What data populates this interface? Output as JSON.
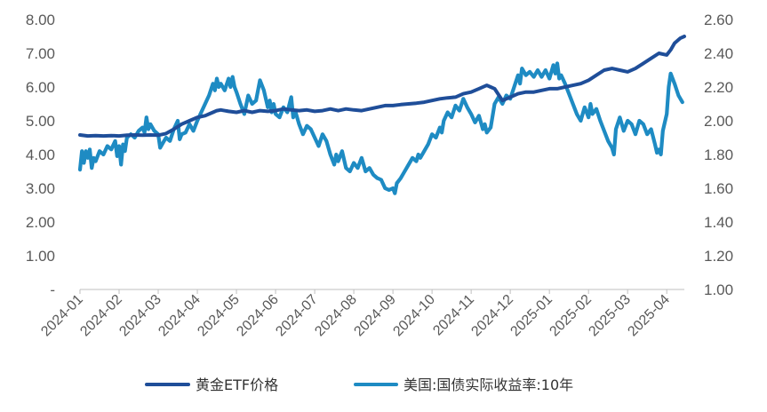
{
  "chart_data": {
    "type": "line",
    "title": "",
    "xlabel": "",
    "ylabel": "",
    "y2label": "",
    "x_categories": [
      "2024-01",
      "2024-02",
      "2024-03",
      "2024-04",
      "2024-05",
      "2024-06",
      "2024-07",
      "2024-08",
      "2024-09",
      "2024-10",
      "2024-11",
      "2024-12",
      "2025-01",
      "2025-02",
      "2025-03",
      "2025-04"
    ],
    "ylim": [
      0,
      8
    ],
    "y_tick_labels": [
      "-",
      "1.00",
      "2.00",
      "3.00",
      "4.00",
      "5.00",
      "6.00",
      "7.00",
      "8.00"
    ],
    "y2lim": [
      1.0,
      2.6
    ],
    "y2_tick_labels": [
      "1.00",
      "1.20",
      "1.40",
      "1.60",
      "1.80",
      "2.00",
      "2.20",
      "2.40",
      "2.60"
    ],
    "grid": false,
    "legend_position": "bottom",
    "series": [
      {
        "name": "黄金ETF价格",
        "axis": "left",
        "color": "#1F4E99",
        "points": [
          [
            0.0,
            4.58
          ],
          [
            0.2,
            4.55
          ],
          [
            0.4,
            4.56
          ],
          [
            0.6,
            4.55
          ],
          [
            0.8,
            4.56
          ],
          [
            1.0,
            4.55
          ],
          [
            1.2,
            4.57
          ],
          [
            1.4,
            4.58
          ],
          [
            1.6,
            4.57
          ],
          [
            1.8,
            4.58
          ],
          [
            2.0,
            4.57
          ],
          [
            2.2,
            4.62
          ],
          [
            2.4,
            4.75
          ],
          [
            2.6,
            4.9
          ],
          [
            2.8,
            5.0
          ],
          [
            3.0,
            5.1
          ],
          [
            3.2,
            5.15
          ],
          [
            3.4,
            5.25
          ],
          [
            3.5,
            5.3
          ],
          [
            3.6,
            5.32
          ],
          [
            3.8,
            5.28
          ],
          [
            4.0,
            5.25
          ],
          [
            4.2,
            5.3
          ],
          [
            4.4,
            5.25
          ],
          [
            4.6,
            5.3
          ],
          [
            4.8,
            5.28
          ],
          [
            5.0,
            5.3
          ],
          [
            5.2,
            5.35
          ],
          [
            5.4,
            5.32
          ],
          [
            5.6,
            5.3
          ],
          [
            5.8,
            5.32
          ],
          [
            6.0,
            5.28
          ],
          [
            6.2,
            5.3
          ],
          [
            6.4,
            5.35
          ],
          [
            6.6,
            5.3
          ],
          [
            6.8,
            5.35
          ],
          [
            7.0,
            5.32
          ],
          [
            7.2,
            5.3
          ],
          [
            7.4,
            5.35
          ],
          [
            7.6,
            5.4
          ],
          [
            7.8,
            5.45
          ],
          [
            8.0,
            5.45
          ],
          [
            8.2,
            5.48
          ],
          [
            8.4,
            5.5
          ],
          [
            8.6,
            5.52
          ],
          [
            8.8,
            5.55
          ],
          [
            9.0,
            5.6
          ],
          [
            9.2,
            5.65
          ],
          [
            9.4,
            5.68
          ],
          [
            9.6,
            5.7
          ],
          [
            9.8,
            5.8
          ],
          [
            10.0,
            5.85
          ],
          [
            10.2,
            5.95
          ],
          [
            10.4,
            6.05
          ],
          [
            10.5,
            6.0
          ],
          [
            10.6,
            5.95
          ],
          [
            10.8,
            5.6
          ],
          [
            11.0,
            5.7
          ],
          [
            11.2,
            5.8
          ],
          [
            11.4,
            5.85
          ],
          [
            11.6,
            5.85
          ],
          [
            11.8,
            5.9
          ],
          [
            12.0,
            5.95
          ],
          [
            12.2,
            5.95
          ],
          [
            12.4,
            6.0
          ],
          [
            12.6,
            6.05
          ],
          [
            12.8,
            6.1
          ],
          [
            13.0,
            6.2
          ],
          [
            13.2,
            6.35
          ],
          [
            13.4,
            6.5
          ],
          [
            13.6,
            6.55
          ],
          [
            13.8,
            6.5
          ],
          [
            14.0,
            6.45
          ],
          [
            14.2,
            6.55
          ],
          [
            14.4,
            6.7
          ],
          [
            14.6,
            6.85
          ],
          [
            14.8,
            7.0
          ],
          [
            15.0,
            6.95
          ],
          [
            15.1,
            7.1
          ],
          [
            15.2,
            7.3
          ],
          [
            15.35,
            7.45
          ],
          [
            15.45,
            7.5
          ]
        ]
      },
      {
        "name": "美国:国债实际收益率:10年",
        "axis": "right",
        "color": "#1E8BC3",
        "points": [
          [
            0.0,
            1.71
          ],
          [
            0.05,
            1.82
          ],
          [
            0.1,
            1.75
          ],
          [
            0.15,
            1.82
          ],
          [
            0.2,
            1.78
          ],
          [
            0.25,
            1.83
          ],
          [
            0.3,
            1.72
          ],
          [
            0.35,
            1.78
          ],
          [
            0.4,
            1.76
          ],
          [
            0.5,
            1.82
          ],
          [
            0.6,
            1.8
          ],
          [
            0.7,
            1.85
          ],
          [
            0.8,
            1.83
          ],
          [
            0.9,
            1.88
          ],
          [
            0.95,
            1.79
          ],
          [
            1.0,
            1.85
          ],
          [
            1.05,
            1.74
          ],
          [
            1.1,
            1.86
          ],
          [
            1.15,
            1.82
          ],
          [
            1.2,
            1.9
          ],
          [
            1.3,
            1.92
          ],
          [
            1.4,
            1.9
          ],
          [
            1.5,
            1.94
          ],
          [
            1.6,
            1.96
          ],
          [
            1.65,
            1.93
          ],
          [
            1.7,
            2.02
          ],
          [
            1.75,
            1.95
          ],
          [
            1.8,
            1.98
          ],
          [
            1.9,
            1.94
          ],
          [
            2.0,
            1.92
          ],
          [
            2.05,
            1.84
          ],
          [
            2.1,
            1.86
          ],
          [
            2.2,
            1.9
          ],
          [
            2.3,
            1.88
          ],
          [
            2.4,
            1.95
          ],
          [
            2.5,
            2.0
          ],
          [
            2.55,
            1.89
          ],
          [
            2.6,
            1.92
          ],
          [
            2.7,
            1.93
          ],
          [
            2.8,
            1.98
          ],
          [
            2.9,
            1.94
          ],
          [
            3.0,
            2.0
          ],
          [
            3.1,
            2.05
          ],
          [
            3.2,
            2.1
          ],
          [
            3.3,
            2.15
          ],
          [
            3.4,
            2.22
          ],
          [
            3.45,
            2.18
          ],
          [
            3.5,
            2.25
          ],
          [
            3.55,
            2.2
          ],
          [
            3.6,
            2.22
          ],
          [
            3.7,
            2.18
          ],
          [
            3.8,
            2.25
          ],
          [
            3.85,
            2.2
          ],
          [
            3.9,
            2.26
          ],
          [
            3.95,
            2.2
          ],
          [
            4.0,
            2.17
          ],
          [
            4.1,
            2.1
          ],
          [
            4.2,
            2.04
          ],
          [
            4.3,
            2.15
          ],
          [
            4.4,
            2.1
          ],
          [
            4.5,
            2.12
          ],
          [
            4.6,
            2.24
          ],
          [
            4.7,
            2.18
          ],
          [
            4.8,
            2.08
          ],
          [
            4.85,
            2.12
          ],
          [
            4.9,
            2.05
          ],
          [
            4.95,
            2.1
          ],
          [
            5.0,
            2.04
          ],
          [
            5.1,
            2.02
          ],
          [
            5.2,
            2.08
          ],
          [
            5.3,
            2.05
          ],
          [
            5.4,
            2.14
          ],
          [
            5.45,
            2.02
          ],
          [
            5.5,
            2.06
          ],
          [
            5.6,
            1.98
          ],
          [
            5.7,
            1.92
          ],
          [
            5.8,
            1.97
          ],
          [
            5.9,
            1.95
          ],
          [
            6.0,
            1.9
          ],
          [
            6.1,
            1.85
          ],
          [
            6.2,
            1.92
          ],
          [
            6.3,
            1.88
          ],
          [
            6.4,
            1.8
          ],
          [
            6.5,
            1.74
          ],
          [
            6.55,
            1.8
          ],
          [
            6.6,
            1.76
          ],
          [
            6.7,
            1.82
          ],
          [
            6.8,
            1.72
          ],
          [
            6.9,
            1.7
          ],
          [
            7.0,
            1.75
          ],
          [
            7.1,
            1.72
          ],
          [
            7.2,
            1.78
          ],
          [
            7.3,
            1.7
          ],
          [
            7.4,
            1.72
          ],
          [
            7.5,
            1.68
          ],
          [
            7.6,
            1.66
          ],
          [
            7.7,
            1.65
          ],
          [
            7.8,
            1.6
          ],
          [
            7.9,
            1.59
          ],
          [
            8.0,
            1.6
          ],
          [
            8.05,
            1.57
          ],
          [
            8.1,
            1.63
          ],
          [
            8.2,
            1.66
          ],
          [
            8.3,
            1.7
          ],
          [
            8.4,
            1.74
          ],
          [
            8.5,
            1.78
          ],
          [
            8.6,
            1.76
          ],
          [
            8.65,
            1.8
          ],
          [
            8.7,
            1.78
          ],
          [
            8.8,
            1.82
          ],
          [
            8.9,
            1.86
          ],
          [
            9.0,
            1.92
          ],
          [
            9.1,
            1.9
          ],
          [
            9.2,
            1.96
          ],
          [
            9.25,
            1.93
          ],
          [
            9.3,
            2.0
          ],
          [
            9.4,
            2.05
          ],
          [
            9.5,
            2.02
          ],
          [
            9.6,
            2.09
          ],
          [
            9.7,
            2.06
          ],
          [
            9.8,
            2.13
          ],
          [
            9.9,
            2.08
          ],
          [
            10.0,
            2.04
          ],
          [
            10.1,
            1.99
          ],
          [
            10.2,
            2.03
          ],
          [
            10.3,
            1.95
          ],
          [
            10.35,
            1.98
          ],
          [
            10.4,
            1.93
          ],
          [
            10.5,
            1.96
          ],
          [
            10.6,
            2.1
          ],
          [
            10.7,
            2.14
          ],
          [
            10.8,
            2.1
          ],
          [
            10.9,
            2.15
          ],
          [
            11.0,
            2.13
          ],
          [
            11.1,
            2.2
          ],
          [
            11.2,
            2.27
          ],
          [
            11.25,
            2.22
          ],
          [
            11.3,
            2.31
          ],
          [
            11.4,
            2.27
          ],
          [
            11.5,
            2.29
          ],
          [
            11.6,
            2.26
          ],
          [
            11.7,
            2.3
          ],
          [
            11.8,
            2.26
          ],
          [
            11.9,
            2.3
          ],
          [
            12.0,
            2.25
          ],
          [
            12.1,
            2.33
          ],
          [
            12.15,
            2.28
          ],
          [
            12.2,
            2.34
          ],
          [
            12.25,
            2.25
          ],
          [
            12.3,
            2.27
          ],
          [
            12.4,
            2.22
          ],
          [
            12.5,
            2.16
          ],
          [
            12.6,
            2.1
          ],
          [
            12.7,
            2.04
          ],
          [
            12.8,
            2.0
          ],
          [
            12.9,
            2.08
          ],
          [
            13.0,
            2.02
          ],
          [
            13.05,
            2.1
          ],
          [
            13.1,
            2.04
          ],
          [
            13.2,
            2.07
          ],
          [
            13.3,
            2.0
          ],
          [
            13.4,
            1.94
          ],
          [
            13.5,
            1.88
          ],
          [
            13.6,
            1.84
          ],
          [
            13.65,
            1.8
          ],
          [
            13.7,
            1.95
          ],
          [
            13.8,
            2.02
          ],
          [
            13.9,
            1.94
          ],
          [
            14.0,
            2.0
          ],
          [
            14.1,
            1.98
          ],
          [
            14.2,
            1.92
          ],
          [
            14.3,
            2.0
          ],
          [
            14.4,
            1.98
          ],
          [
            14.5,
            1.92
          ],
          [
            14.6,
            1.95
          ],
          [
            14.7,
            1.86
          ],
          [
            14.75,
            1.81
          ],
          [
            14.8,
            1.83
          ],
          [
            14.85,
            1.8
          ],
          [
            14.9,
            1.94
          ],
          [
            15.0,
            2.04
          ],
          [
            15.05,
            2.2
          ],
          [
            15.1,
            2.28
          ],
          [
            15.15,
            2.25
          ],
          [
            15.2,
            2.22
          ],
          [
            15.3,
            2.15
          ],
          [
            15.4,
            2.11
          ]
        ]
      }
    ]
  }
}
